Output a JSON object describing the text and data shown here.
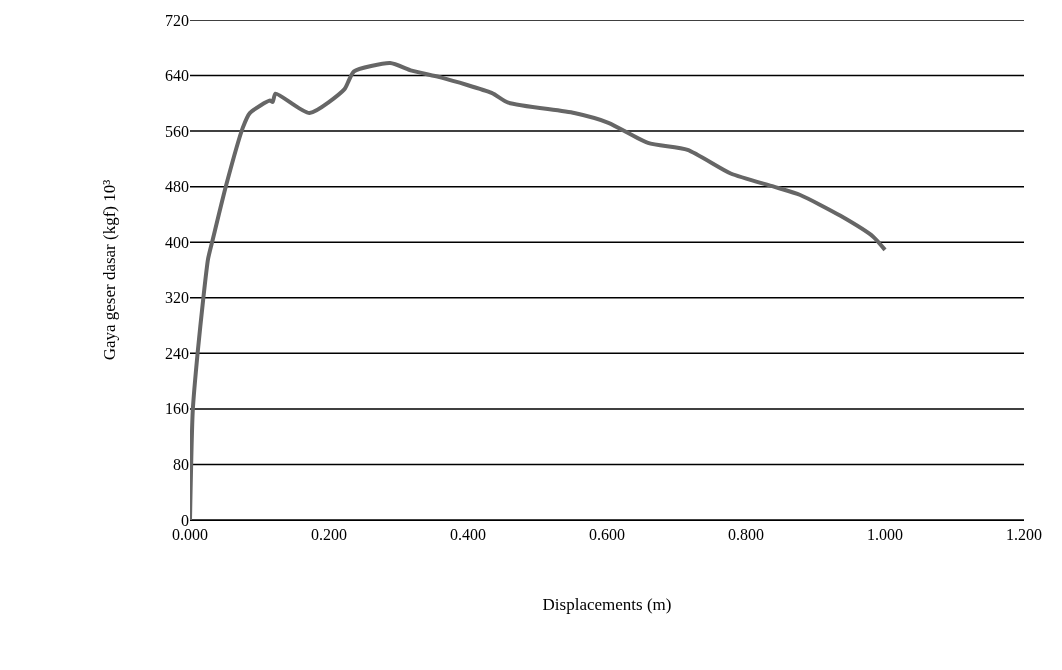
{
  "chart_data": {
    "type": "line",
    "xlabel": "Displacements (m)",
    "ylabel": "Gaya geser dasar (kgf) 10³",
    "x": [
      0,
      0.004,
      0.011,
      0.019,
      0.026,
      0.033,
      0.052,
      0.076,
      0.086,
      0.115,
      0.119,
      0.123,
      0.172,
      0.222,
      0.229,
      0.236,
      0.288,
      0.319,
      0.362,
      0.434,
      0.458,
      0.553,
      0.602,
      0.659,
      0.716,
      0.778,
      0.84,
      0.878,
      0.936,
      0.983,
      1.0
    ],
    "series": [
      {
        "color": "#666666",
        "values": [
          0,
          158,
          241,
          318,
          376,
          405,
          482,
          565,
          586,
          604,
          602,
          614,
          586,
          620,
          634,
          646,
          658,
          647,
          637,
          615,
          601,
          586,
          572,
          543,
          533,
          499,
          480,
          468,
          438,
          408,
          389
        ]
      }
    ],
    "xlim": [
      0,
      1.2
    ],
    "xticks": [
      {
        "value": 0,
        "label": "0.000"
      },
      {
        "value": 0.2,
        "label": "0.200"
      },
      {
        "value": 0.4,
        "label": "0.400"
      },
      {
        "value": 0.6,
        "label": "0.600"
      },
      {
        "value": 0.8,
        "label": "0.800"
      },
      {
        "value": 1,
        "label": "1.000"
      },
      {
        "value": 1.2,
        "label": "1.200"
      }
    ],
    "ylim": [
      0,
      720
    ],
    "yticks": [
      0,
      80,
      160,
      240,
      320,
      400,
      480,
      560,
      640,
      720
    ],
    "grid": "y",
    "marker": "none",
    "line_style": "solid"
  }
}
